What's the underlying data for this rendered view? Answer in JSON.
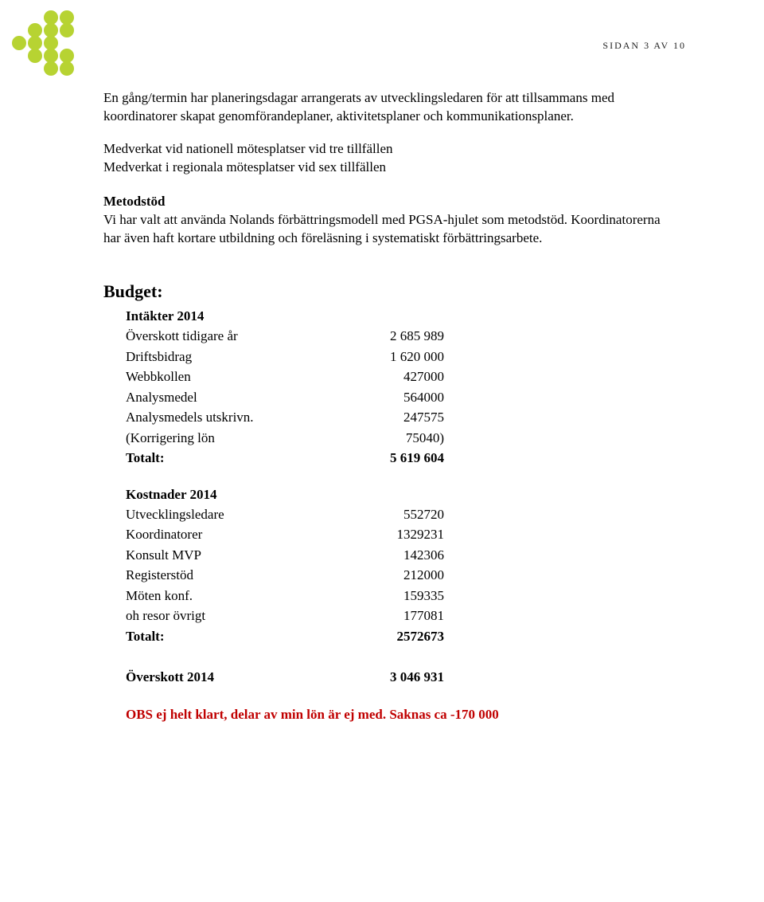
{
  "pageNumber": "SIDAN 3 AV 10",
  "logo": {
    "dot_color": "#b7d332",
    "radius": 9
  },
  "paragraphs": {
    "p1": "En gång/termin har planeringsdagar arrangerats av utvecklingsledaren för att tillsammans med koordinatorer skapat genomförandeplaner, aktivitetsplaner och kommunikationsplaner.",
    "p2a": "Medverkat vid nationell mötesplatser vid tre tillfällen",
    "p2b": "Medverkat i regionala mötesplatser vid sex tillfällen",
    "metodstod_head": "Metodstöd",
    "metodstod_body": "Vi har valt att använda Nolands förbättringsmodell med PGSA-hjulet som metodstöd. Koordinatorerna har även haft kortare utbildning och föreläsning i systematiskt förbättringsarbete."
  },
  "budget": {
    "title": "Budget:",
    "intakter": {
      "header": "Intäkter 2014",
      "rows": [
        {
          "label": "Överskott tidigare år",
          "value": "2 685 989"
        },
        {
          "label": "Driftsbidrag",
          "value": "1 620 000"
        },
        {
          "label": "Webbkollen",
          "value": "427000"
        },
        {
          "label": "Analysmedel",
          "value": "564000"
        },
        {
          "label": "Analysmedels utskrivn.",
          "value": "247575"
        },
        {
          "label": "(Korrigering lön",
          "value": "75040)"
        }
      ],
      "total_label": "Totalt:",
      "total_value": "5 619 604"
    },
    "kostnader": {
      "header": "Kostnader 2014",
      "rows": [
        {
          "label": "Utvecklingsledare",
          "value": "552720"
        },
        {
          "label": "Koordinatorer",
          "value": "1329231"
        },
        {
          "label": "Konsult MVP",
          "value": "142306"
        },
        {
          "label": "Registerstöd",
          "value": "212000"
        },
        {
          "label": "Möten konf.",
          "value": "159335"
        },
        {
          "label": "oh resor övrigt",
          "value": "177081"
        }
      ],
      "total_label": "Totalt:",
      "total_value": "2572673"
    },
    "surplus": {
      "label": "Överskott 2014",
      "value": "3 046 931"
    },
    "note": "OBS ej helt klart, delar av min lön är ej med. Saknas ca -170 000"
  }
}
